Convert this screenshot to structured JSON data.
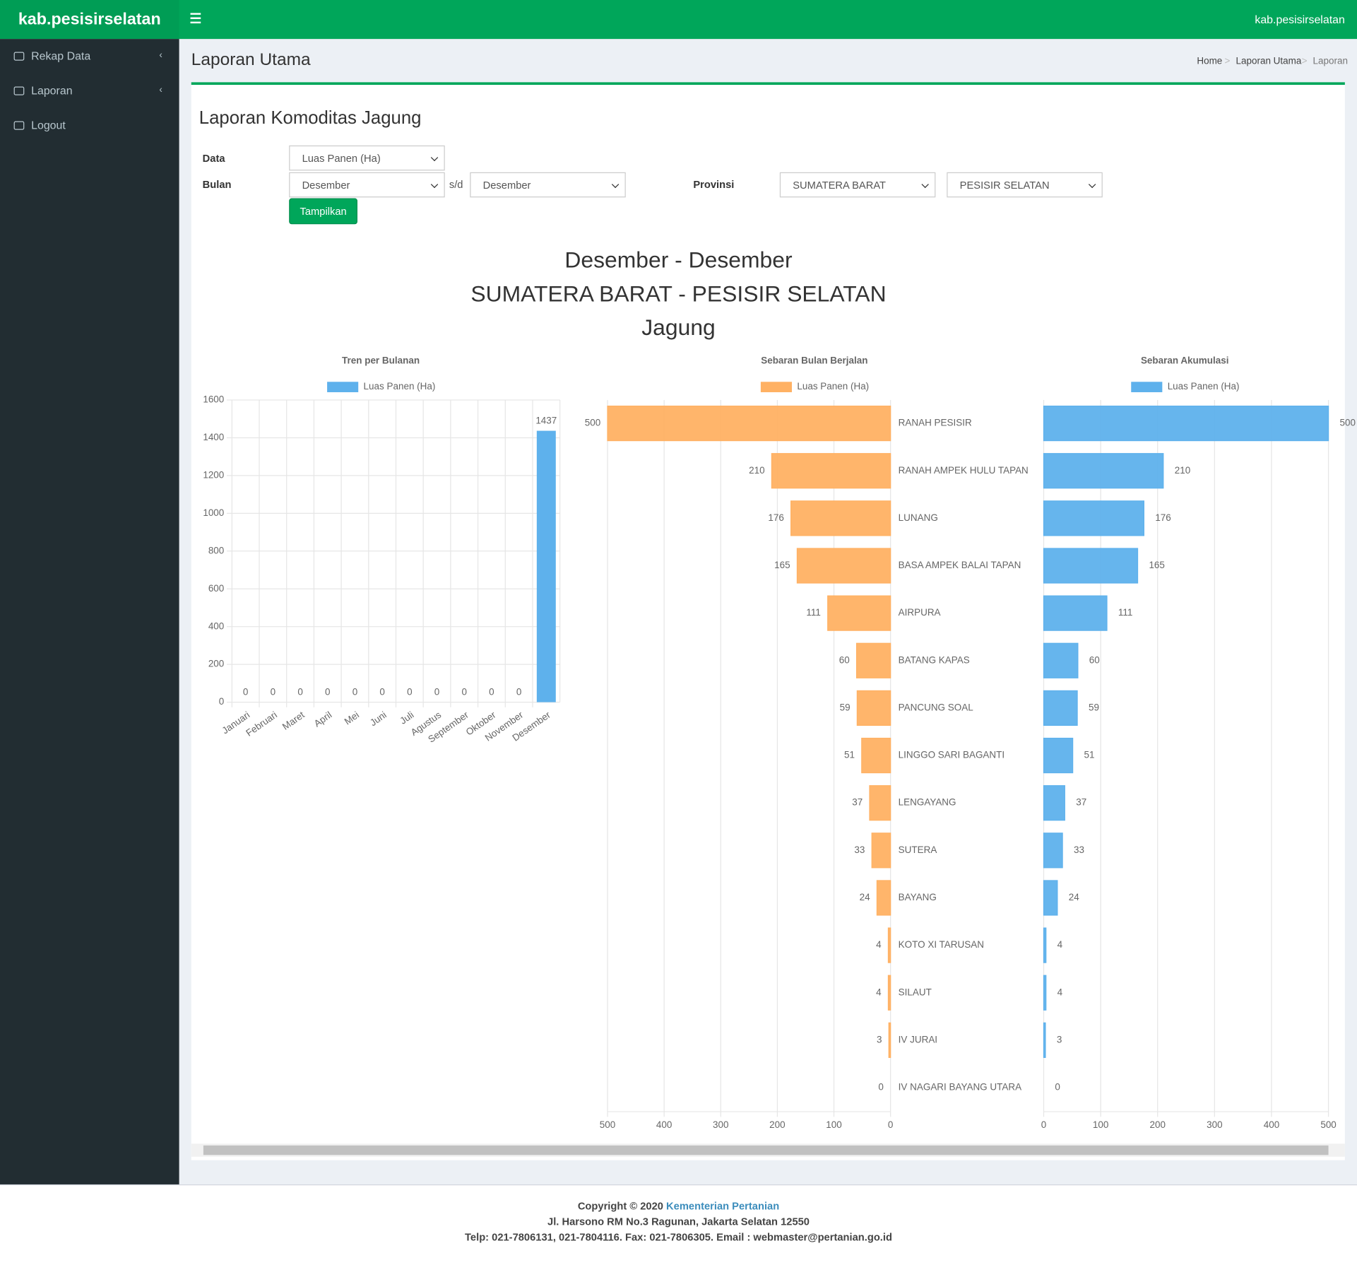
{
  "header": {
    "brand": "kab.pesisirselatan",
    "user": "kab.pesisirselatan"
  },
  "sidebar": {
    "items": [
      "Rekap Data",
      "Laporan",
      "Logout"
    ]
  },
  "page": {
    "title": "Laporan Utama",
    "breadcrumb": [
      "Home",
      "Laporan Utama",
      "Laporan"
    ]
  },
  "box": {
    "title": "Laporan Komoditas Jagung"
  },
  "form": {
    "labels": {
      "data": "Data",
      "bulan": "Bulan",
      "provinsi": "Provinsi"
    },
    "data_select": "Luas Panen (Ha)",
    "bulan_from": "Desember",
    "separator": "s/d",
    "bulan_to": "Desember",
    "provinsi_select": "SUMATERA BARAT",
    "kabupaten_select": "PESISIR SELATAN",
    "button": "Tampilkan"
  },
  "report": {
    "lines": [
      "Desember - Desember",
      "SUMATERA BARAT - PESISIR SELATAN",
      "Jagung"
    ]
  },
  "chart_data": [
    {
      "type": "bar",
      "title": "Tren per Bulanan",
      "categories": [
        "Januari",
        "Februari",
        "Maret",
        "April",
        "Mei",
        "Juni",
        "Juli",
        "Agustus",
        "September",
        "Oktober",
        "November",
        "Desember"
      ],
      "series": [
        {
          "name": "Luas Panen (Ha)",
          "color": "#5eb1ec",
          "values": [
            0,
            0,
            0,
            0,
            0,
            0,
            0,
            0,
            0,
            0,
            0,
            1437
          ]
        }
      ],
      "ylim": [
        0,
        1600
      ],
      "yticks": [
        0,
        200,
        400,
        600,
        800,
        1000,
        1200,
        1400,
        1600
      ],
      "grid": true
    },
    {
      "type": "bar",
      "orientation": "horizontal",
      "title": "Sebaran Bulan Berjalan",
      "categories": [
        "RANAH PESISIR",
        "RANAH AMPEK HULU TAPAN",
        "LUNANG",
        "BASA AMPEK BALAI TAPAN",
        "AIRPURA",
        "BATANG KAPAS",
        "PANCUNG SOAL",
        "LINGGO SARI BAGANTI",
        "LENGAYANG",
        "SUTERA",
        "BAYANG",
        "KOTO XI TARUSAN",
        "SILAUT",
        "IV JURAI",
        "IV  NAGARI BAYANG UTARA"
      ],
      "series": [
        {
          "name": "Luas Panen (Ha)",
          "color": "#ffb163",
          "values": [
            500,
            210,
            176,
            165,
            111,
            60,
            59,
            51,
            37,
            33,
            24,
            4,
            4,
            3,
            0
          ]
        }
      ],
      "xlim": [
        500,
        0
      ],
      "xticks": [
        500,
        400,
        300,
        200,
        100,
        0
      ],
      "grid": true
    },
    {
      "type": "bar",
      "orientation": "horizontal",
      "title": "Sebaran Akumulasi",
      "series": [
        {
          "name": "Luas Panen (Ha)",
          "color": "#5eb1ec",
          "values": [
            500,
            210,
            176,
            165,
            111,
            60,
            59,
            51,
            37,
            33,
            24,
            4,
            4,
            3,
            0
          ]
        }
      ],
      "xlim": [
        0,
        500
      ],
      "xticks": [
        0,
        100,
        200,
        300,
        400,
        500
      ],
      "grid": true
    }
  ],
  "footer": {
    "copyright": "Copyright © 2020",
    "link": "Kementerian Pertanian",
    "address": "Jl. Harsono RM No.3 Ragunan, Jakarta Selatan 12550",
    "contact": "Telp: 021-7806131, 021-7804116. Fax: 021-7806305. Email : webmaster@pertanian.go.id"
  }
}
